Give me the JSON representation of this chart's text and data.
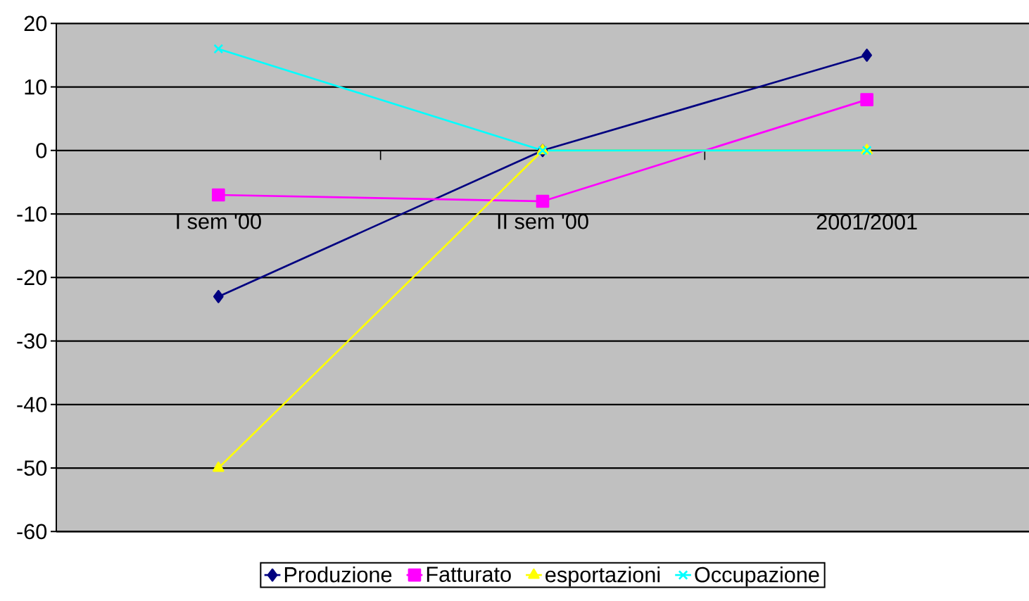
{
  "chart_data": {
    "type": "line",
    "categories": [
      "I sem '00",
      "II sem '00",
      "2001/2001"
    ],
    "series": [
      {
        "name": "Produzione",
        "color": "#000080",
        "marker": "diamond",
        "values": [
          -23,
          0,
          15
        ]
      },
      {
        "name": "Fatturato",
        "color": "#ff00ff",
        "marker": "square",
        "values": [
          -7,
          -8,
          8
        ]
      },
      {
        "name": "esportazioni",
        "color": "#ffff00",
        "marker": "triangle",
        "values": [
          -50,
          0,
          0
        ]
      },
      {
        "name": "Occupazione",
        "color": "#00ffff",
        "marker": "cross",
        "values": [
          16,
          0,
          0
        ]
      }
    ],
    "ylim": [
      -60,
      20
    ],
    "yticks": [
      -60,
      -50,
      -40,
      -30,
      -20,
      -10,
      0,
      10,
      20
    ],
    "grid": "y",
    "legend": "bottom",
    "line_style": "solid"
  }
}
